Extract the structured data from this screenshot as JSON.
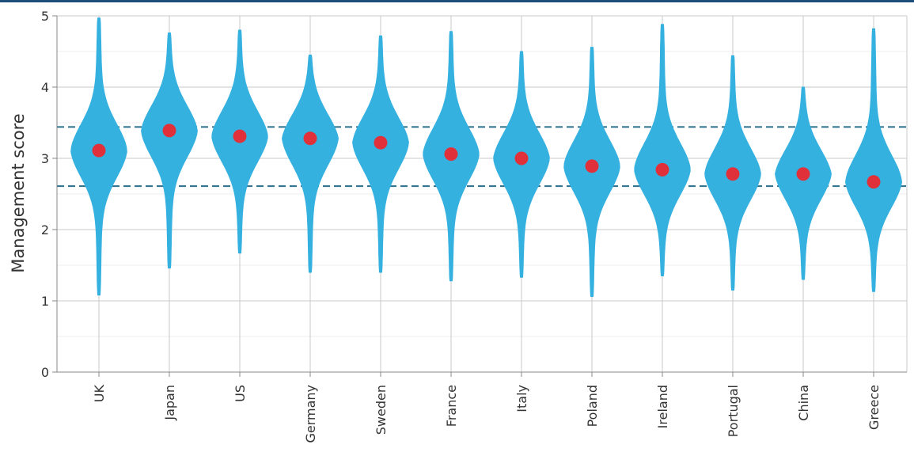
{
  "chart_data": {
    "type": "violin",
    "title": "",
    "xlabel": "",
    "ylabel": "Management score",
    "ylim": [
      0,
      5
    ],
    "yticks": [
      0,
      1,
      2,
      3,
      4,
      5
    ],
    "grid": true,
    "categories": [
      "UK",
      "Japan",
      "US",
      "Germany",
      "Sweden",
      "France",
      "Italy",
      "Poland",
      "Ireland",
      "Portugal",
      "China",
      "Greece"
    ],
    "means": [
      3.11,
      3.39,
      3.31,
      3.28,
      3.22,
      3.06,
      3.0,
      2.89,
      2.84,
      2.78,
      2.78,
      2.67
    ],
    "min": [
      1.08,
      1.46,
      1.67,
      1.4,
      1.4,
      1.28,
      1.33,
      1.06,
      1.35,
      1.15,
      1.3,
      1.13
    ],
    "max": [
      4.97,
      4.76,
      4.8,
      4.45,
      4.72,
      4.78,
      4.5,
      4.56,
      4.88,
      4.44,
      4.0,
      4.82
    ],
    "reference_lines": [
      3.44,
      2.61
    ],
    "colors": {
      "violin": "#35b1e0",
      "mean_dot": "#e0313b",
      "reference_line": "#2a6f8c",
      "grid": "#c8c8c8",
      "axis": "#888888"
    }
  }
}
